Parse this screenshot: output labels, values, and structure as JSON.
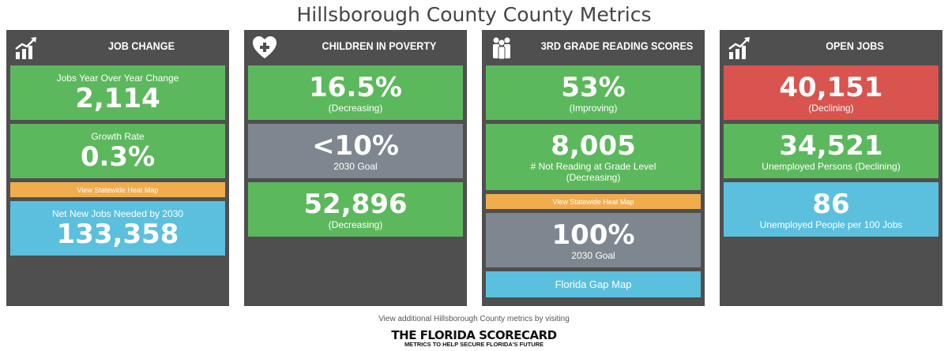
{
  "title": "Hillsborough County County Metrics",
  "panels": [
    {
      "title": "JOB CHANGE",
      "icon": "growth-chart-icon",
      "cards": [
        {
          "label": "Jobs Year Over Year Change",
          "value": "2,114"
        },
        {
          "label": "Growth Rate",
          "value": "0.3%"
        },
        {
          "button": "View Statewide Heat Map"
        },
        {
          "label": "Net New Jobs Needed by 2030",
          "value": "133,358"
        }
      ]
    },
    {
      "title": "CHILDREN IN POVERTY",
      "icon": "heart-plus-icon",
      "cards": [
        {
          "value": "16.5%",
          "sub": "(Decreasing)"
        },
        {
          "value": "<10%",
          "sub": "2030 Goal"
        },
        {
          "value": "52,896",
          "sub": "(Decreasing)"
        }
      ]
    },
    {
      "title": "3RD GRADE READING SCORES",
      "icon": "people-icon",
      "cards": [
        {
          "value": "53%",
          "sub": "(Improving)"
        },
        {
          "value": "8,005",
          "sub": "# Not Reading at Grade Level",
          "sub2": "(Decreasing)"
        },
        {
          "button": "View Statewide Heat Map"
        },
        {
          "value": "100%",
          "sub": "2030 Goal"
        },
        {
          "button": "Florida Gap Map"
        }
      ]
    },
    {
      "title": "OPEN JOBS",
      "icon": "growth-chart-icon",
      "cards": [
        {
          "value": "40,151",
          "sub": "(Declining)"
        },
        {
          "value": "34,521",
          "sub": "Unemployed Persons (Declining)"
        },
        {
          "value": "86",
          "sub": "Unemployed People per 100 Jobs"
        }
      ]
    }
  ],
  "footer": {
    "text": "View additional Hillsborough County metrics by visiting",
    "logo_title": "THE FLORIDA SCORECARD",
    "logo_tagline": "METRICS TO HELP SECURE FLORIDA'S FUTURE"
  },
  "colors": {
    "green": "#5cb85c",
    "gray": "#7e878f",
    "blue": "#5bc0de",
    "red": "#d9534f",
    "orange": "#f0ad4e",
    "panel": "#4f4f4f"
  }
}
